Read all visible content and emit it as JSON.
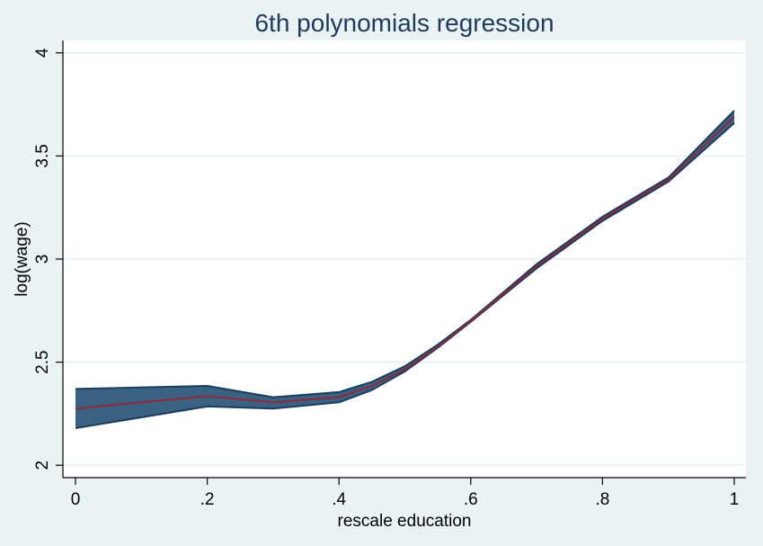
{
  "chart_data": {
    "type": "area",
    "title": "6th polynomials regression",
    "xlabel": "rescale education",
    "ylabel": "log(wage)",
    "xlim": [
      0,
      1
    ],
    "ylim": [
      1.94,
      4.06
    ],
    "x_ticks": [
      0,
      0.2,
      0.4,
      0.6,
      0.8,
      1
    ],
    "x_tick_labels": [
      "0",
      ".2",
      ".4",
      ".6",
      ".8",
      "1"
    ],
    "y_ticks": [
      2,
      2.5,
      3,
      3.5,
      4
    ],
    "y_tick_labels": [
      "2",
      "2.5",
      "3",
      "3.5",
      "4"
    ],
    "grid": true,
    "x": [
      0,
      0.2,
      0.3,
      0.4,
      0.45,
      0.5,
      0.55,
      0.6,
      0.7,
      0.8,
      0.9,
      1
    ],
    "series": [
      {
        "role": "upper",
        "values": [
          2.37,
          2.385,
          2.33,
          2.355,
          2.405,
          2.48,
          2.585,
          2.705,
          2.975,
          3.205,
          3.395,
          3.72
        ]
      },
      {
        "role": "fit",
        "values": [
          2.275,
          2.335,
          2.305,
          2.33,
          2.385,
          2.465,
          2.575,
          2.7,
          2.965,
          3.195,
          3.385,
          3.69
        ]
      },
      {
        "role": "lower",
        "values": [
          2.18,
          2.285,
          2.275,
          2.305,
          2.365,
          2.455,
          2.57,
          2.695,
          2.955,
          3.185,
          3.375,
          3.66
        ]
      }
    ],
    "colors": {
      "band_fill": "#3b6182",
      "band_edge": "#1a3e5e",
      "fit_line": "#8c2a3a",
      "grid": "#e6eef1",
      "plot_bg": "#ffffff",
      "page_bg": "#eaf2f3"
    }
  }
}
